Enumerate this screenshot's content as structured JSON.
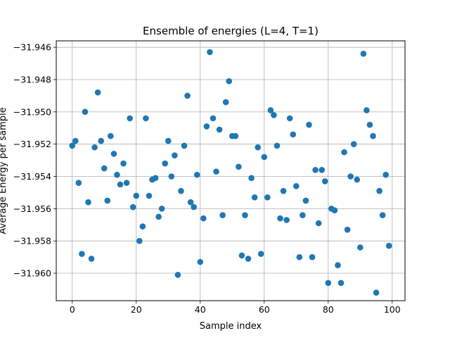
{
  "chart_data": {
    "type": "scatter",
    "title": "Ensemble of energies (L=4, T=1)",
    "xlabel": "Sample index",
    "ylabel": "Average Energy per sample",
    "xlim": [
      -5,
      104
    ],
    "ylim": [
      -31.9617,
      -31.9456
    ],
    "xticks": [
      0,
      20,
      40,
      60,
      80,
      100
    ],
    "yticks": [
      -31.96,
      -31.958,
      -31.956,
      -31.954,
      -31.952,
      -31.95,
      -31.948,
      -31.946
    ],
    "ytick_labels": [
      "−31.960",
      "−31.958",
      "−31.956",
      "−31.954",
      "−31.952",
      "−31.950",
      "−31.948",
      "−31.946"
    ],
    "grid": true,
    "marker_color": "#1f77b4",
    "x": [
      0,
      1,
      2,
      3,
      4,
      5,
      6,
      7,
      8,
      9,
      10,
      11,
      12,
      13,
      14,
      15,
      16,
      17,
      18,
      19,
      20,
      21,
      22,
      23,
      24,
      25,
      26,
      27,
      28,
      29,
      30,
      31,
      32,
      33,
      34,
      35,
      36,
      37,
      38,
      39,
      40,
      41,
      42,
      43,
      44,
      45,
      46,
      47,
      48,
      49,
      50,
      51,
      52,
      53,
      54,
      55,
      56,
      57,
      58,
      59,
      60,
      61,
      62,
      63,
      64,
      65,
      66,
      67,
      68,
      69,
      70,
      71,
      72,
      73,
      74,
      75,
      76,
      77,
      78,
      79,
      80,
      81,
      82,
      83,
      84,
      85,
      86,
      87,
      88,
      89,
      90,
      91,
      92,
      93,
      94,
      95,
      96,
      97,
      98,
      99
    ],
    "y": [
      -31.9521,
      -31.9518,
      -31.9544,
      -31.9588,
      -31.95,
      -31.9556,
      -31.9591,
      -31.9522,
      -31.9488,
      -31.9518,
      -31.9535,
      -31.9555,
      -31.9515,
      -31.9526,
      -31.9539,
      -31.9545,
      -31.9532,
      -31.9544,
      -31.9504,
      -31.9559,
      -31.9552,
      -31.958,
      -31.9571,
      -31.9504,
      -31.9552,
      -31.9542,
      -31.9541,
      -31.9565,
      -31.956,
      -31.9532,
      -31.9518,
      -31.954,
      -31.9527,
      -31.9601,
      -31.9549,
      -31.9521,
      -31.949,
      -31.9556,
      -31.9559,
      -31.9539,
      -31.9593,
      -31.9566,
      -31.9509,
      -31.9463,
      -31.9504,
      -31.9537,
      -31.9511,
      -31.9564,
      -31.9494,
      -31.9481,
      -31.9515,
      -31.9515,
      -31.9534,
      -31.9589,
      -31.9564,
      -31.9591,
      -31.9541,
      -31.9553,
      -31.9522,
      -31.9588,
      -31.9528,
      -31.9553,
      -31.9499,
      -31.9502,
      -31.9521,
      -31.9566,
      -31.9549,
      -31.9567,
      -31.9504,
      -31.9514,
      -31.9546,
      -31.959,
      -31.9564,
      -31.9555,
      -31.9508,
      -31.959,
      -31.9536,
      -31.9569,
      -31.9536,
      -31.9543,
      -31.9606,
      -31.956,
      -31.9561,
      -31.9595,
      -31.9606,
      -31.9525,
      -31.9573,
      -31.954,
      -31.952,
      -31.9542,
      -31.9584,
      -31.9464,
      -31.9499,
      -31.9508,
      -31.9515,
      -31.9612,
      -31.9549,
      -31.9564,
      -31.9539,
      -31.9583
    ]
  }
}
